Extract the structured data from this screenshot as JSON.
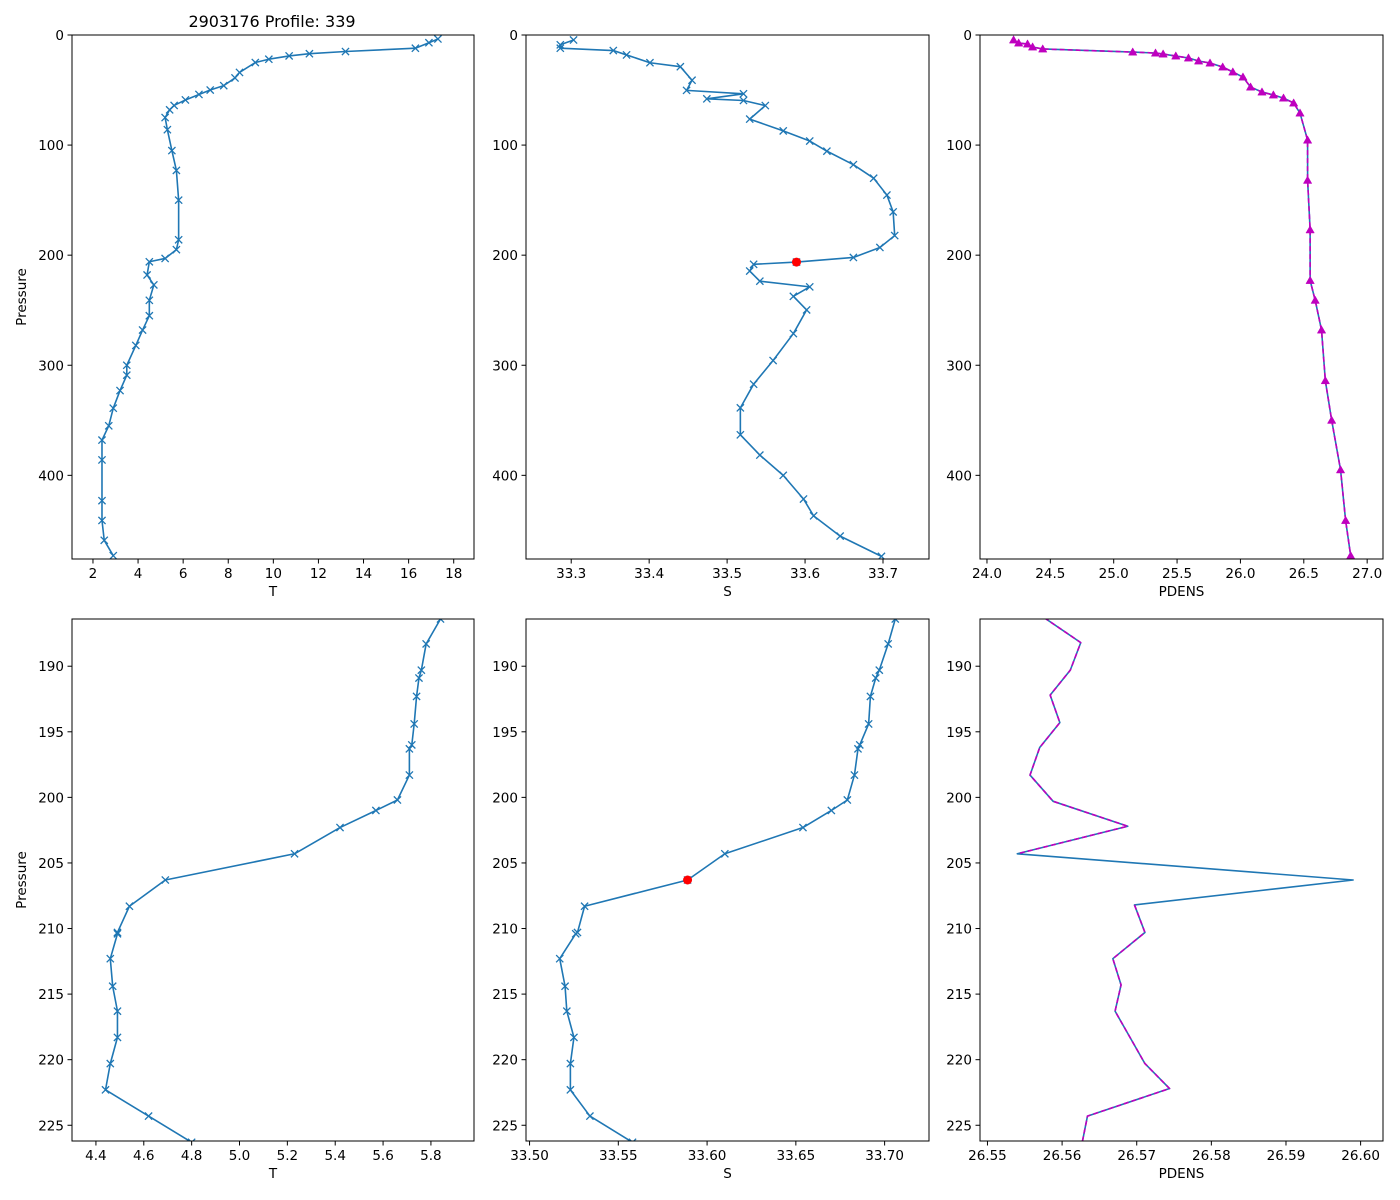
{
  "figure": {
    "title": "2903176 Profile: 339"
  },
  "colors": {
    "blue": "#1f77b4",
    "magenta": "#bf00bf",
    "red": "#ff0000"
  },
  "chart_data": [
    {
      "type": "line",
      "panel": "top-temperature",
      "xlabel": "T",
      "ylabel": "Pressure",
      "xlim": [
        1.07,
        18.9
      ],
      "ylim": [
        0,
        476
      ],
      "xticks": [
        2,
        4,
        6,
        8,
        10,
        12,
        14,
        16,
        18
      ],
      "xtick_labels": [
        "2",
        "4",
        "6",
        "8",
        "10",
        "12",
        "14",
        "16",
        "18"
      ],
      "yticks": [
        0,
        100,
        200,
        300,
        400
      ],
      "ytick_labels": [
        "0",
        "100",
        "200",
        "300",
        "400"
      ],
      "series": [
        {
          "name": "T",
          "color": "#1f77b4",
          "marker": "x",
          "linestyle": "solid",
          "pressure": [
            3.6,
            7,
            12,
            15,
            17,
            19,
            22,
            25,
            34,
            39,
            46,
            50,
            54,
            59,
            64,
            68,
            75,
            86,
            105,
            123,
            150,
            186,
            195,
            203,
            206,
            218,
            227,
            241,
            255,
            268,
            282,
            300,
            309,
            323,
            339,
            355,
            368,
            386,
            423,
            441,
            459,
            473
          ],
          "values": [
            17.3,
            16.9,
            16.3,
            13.2,
            11.6,
            10.7,
            9.8,
            9.2,
            8.5,
            8.3,
            7.8,
            7.2,
            6.7,
            6.1,
            5.6,
            5.4,
            5.2,
            5.3,
            5.5,
            5.7,
            5.8,
            5.8,
            5.7,
            5.2,
            4.5,
            4.4,
            4.7,
            4.5,
            4.5,
            4.2,
            3.9,
            3.5,
            3.5,
            3.2,
            2.9,
            2.7,
            2.4,
            2.4,
            2.4,
            2.4,
            2.5,
            2.9
          ]
        }
      ]
    },
    {
      "type": "line",
      "panel": "top-salinity",
      "xlabel": "S",
      "ylabel": "",
      "xlim": [
        33.242,
        33.759
      ],
      "ylim": [
        0,
        476
      ],
      "xticks": [
        33.3,
        33.4,
        33.5,
        33.6,
        33.7
      ],
      "xtick_labels": [
        "33.3",
        "33.4",
        "33.5",
        "33.6",
        "33.7"
      ],
      "yticks": [
        0,
        100,
        200,
        300,
        400
      ],
      "ytick_labels": [
        "0",
        "100",
        "200",
        "300",
        "400"
      ],
      "series": [
        {
          "name": "S",
          "color": "#1f77b4",
          "marker": "x",
          "linestyle": "solid",
          "pressure": [
            4.5,
            8.9,
            12.0,
            14.1,
            18.1,
            25.2,
            28.8,
            41.1,
            50.3,
            53.4,
            58.0,
            59.5,
            64.1,
            76.4,
            87.1,
            96.3,
            105.5,
            117.8,
            130.1,
            145.4,
            160.7,
            182.2,
            193,
            202.1,
            206.3,
            208.3,
            214.4,
            223.6,
            228.8,
            237.4,
            249.7,
            271.2,
            295.7,
            317.2,
            338.7,
            363.2,
            381.6,
            400,
            421.5,
            436.8,
            455.2,
            473.6
          ],
          "values": [
            33.303,
            33.286,
            33.286,
            33.354,
            33.371,
            33.401,
            33.44,
            33.455,
            33.448,
            33.521,
            33.474,
            33.521,
            33.549,
            33.529,
            33.572,
            33.606,
            33.628,
            33.662,
            33.688,
            33.705,
            33.713,
            33.715,
            33.696,
            33.662,
            33.589,
            33.534,
            33.529,
            33.542,
            33.606,
            33.585,
            33.602,
            33.585,
            33.559,
            33.534,
            33.517,
            33.517,
            33.542,
            33.572,
            33.598,
            33.611,
            33.645,
            33.698
          ]
        }
      ],
      "highlight": {
        "pressure": 206.3,
        "value": 33.589,
        "color": "#ff0000"
      }
    },
    {
      "type": "line",
      "panel": "top-density",
      "xlabel": "PDENS",
      "ylabel": "",
      "xlim": [
        23.945,
        27.125
      ],
      "ylim": [
        0,
        476
      ],
      "xticks": [
        24.0,
        24.5,
        25.0,
        25.5,
        26.0,
        26.5,
        27.0
      ],
      "xtick_labels": [
        "24.0",
        "24.5",
        "25.0",
        "25.5",
        "26.0",
        "26.5",
        "27.0"
      ],
      "yticks": [
        0,
        100,
        200,
        300,
        400
      ],
      "ytick_labels": [
        "0",
        "100",
        "200",
        "300",
        "400"
      ],
      "series": [
        {
          "name": "PDENS",
          "color": "#1f77b4",
          "marker": "none",
          "linestyle": "solid",
          "pressure": [
            4.5,
            7.3,
            8.2,
            10.9,
            12.7,
            15.5,
            16.4,
            17.3,
            19.1,
            20.9,
            23.6,
            25.5,
            29.1,
            33.6,
            38.2,
            47.3,
            51.8,
            54.5,
            57.3,
            61.8,
            70.9,
            95.5,
            132,
            177,
            223,
            241,
            268,
            314,
            350,
            395,
            441,
            473
          ],
          "values": [
            24.21,
            24.25,
            24.32,
            24.36,
            24.44,
            25.15,
            25.33,
            25.39,
            25.49,
            25.59,
            25.67,
            25.76,
            25.86,
            25.94,
            26.02,
            26.08,
            26.17,
            26.26,
            26.34,
            26.42,
            26.47,
            26.53,
            26.53,
            26.55,
            26.55,
            26.59,
            26.64,
            26.67,
            26.72,
            26.79,
            26.83,
            26.87
          ]
        },
        {
          "name": "PDENS (stable)",
          "color": "#bf00bf",
          "marker": "^",
          "linestyle": "dashed",
          "pressure": [
            4.5,
            7.3,
            8.2,
            10.9,
            12.7,
            15.5,
            16.4,
            17.3,
            19.1,
            20.9,
            23.6,
            25.5,
            29.1,
            33.6,
            38.2,
            47.3,
            51.8,
            54.5,
            57.3,
            61.8,
            70.9,
            95.5,
            132,
            177,
            223,
            241,
            268,
            314,
            350,
            395,
            441,
            473
          ],
          "values": [
            24.21,
            24.25,
            24.32,
            24.36,
            24.44,
            25.15,
            25.33,
            25.39,
            25.49,
            25.59,
            25.67,
            25.76,
            25.86,
            25.94,
            26.02,
            26.08,
            26.17,
            26.26,
            26.34,
            26.42,
            26.47,
            26.53,
            26.53,
            26.55,
            26.55,
            26.59,
            26.64,
            26.67,
            26.72,
            26.79,
            26.83,
            26.87
          ]
        }
      ]
    },
    {
      "type": "line",
      "panel": "zoom-temperature",
      "xlabel": "T",
      "ylabel": "Pressure",
      "xlim": [
        4.3,
        5.98
      ],
      "ylim": [
        186.4,
        226.2
      ],
      "xticks": [
        4.4,
        4.6,
        4.8,
        5.0,
        5.2,
        5.4,
        5.6,
        5.8
      ],
      "xtick_labels": [
        "4.4",
        "4.6",
        "4.8",
        "5.0",
        "5.2",
        "5.4",
        "5.6",
        "5.8"
      ],
      "yticks": [
        190,
        195,
        200,
        205,
        210,
        215,
        220,
        225
      ],
      "ytick_labels": [
        "190",
        "195",
        "200",
        "205",
        "210",
        "215",
        "220",
        "225"
      ],
      "series": [
        {
          "name": "T",
          "color": "#1f77b4",
          "marker": "x",
          "linestyle": "solid",
          "pressure": [
            186.4,
            188.3,
            190.3,
            190.9,
            192.3,
            194.4,
            196.0,
            196.3,
            198.3,
            200.2,
            201.0,
            202.3,
            204.3,
            206.3,
            208.3,
            210.3,
            210.4,
            212.3,
            214.4,
            216.3,
            218.3,
            220.3,
            222.3,
            224.3,
            226.3
          ],
          "values": [
            5.84,
            5.78,
            5.76,
            5.75,
            5.74,
            5.73,
            5.72,
            5.71,
            5.71,
            5.66,
            5.57,
            5.42,
            5.23,
            4.69,
            4.54,
            4.49,
            4.49,
            4.46,
            4.47,
            4.49,
            4.49,
            4.46,
            4.44,
            4.62,
            4.8
          ]
        }
      ]
    },
    {
      "type": "line",
      "panel": "zoom-salinity",
      "xlabel": "S",
      "ylabel": "",
      "xlim": [
        33.498,
        33.725
      ],
      "ylim": [
        186.4,
        226.2
      ],
      "xticks": [
        33.5,
        33.55,
        33.6,
        33.65,
        33.7
      ],
      "xtick_labels": [
        "33.50",
        "33.55",
        "33.60",
        "33.65",
        "33.70"
      ],
      "yticks": [
        190,
        195,
        200,
        205,
        210,
        215,
        220,
        225
      ],
      "ytick_labels": [
        "190",
        "195",
        "200",
        "205",
        "210",
        "215",
        "220",
        "225"
      ],
      "series": [
        {
          "name": "S",
          "color": "#1f77b4",
          "marker": "x",
          "linestyle": "solid",
          "pressure": [
            186.4,
            188.3,
            190.3,
            190.9,
            192.3,
            194.4,
            196.0,
            196.3,
            198.3,
            200.2,
            201.0,
            202.3,
            204.3,
            206.3,
            208.3,
            210.3,
            210.4,
            212.3,
            214.4,
            216.3,
            218.3,
            220.3,
            222.3,
            224.3,
            226.3
          ],
          "values": [
            33.706,
            33.702,
            33.697,
            33.695,
            33.692,
            33.691,
            33.686,
            33.685,
            33.683,
            33.679,
            33.67,
            33.654,
            33.61,
            33.589,
            33.531,
            33.527,
            33.526,
            33.517,
            33.52,
            33.521,
            33.525,
            33.523,
            33.523,
            33.534,
            33.558
          ]
        }
      ],
      "highlight": {
        "pressure": 206.3,
        "value": 33.589,
        "color": "#ff0000"
      }
    },
    {
      "type": "line",
      "panel": "zoom-density",
      "xlabel": "PDENS",
      "ylabel": "",
      "xlim": [
        26.549,
        26.603
      ],
      "ylim": [
        186.4,
        226.2
      ],
      "xticks": [
        26.55,
        26.56,
        26.57,
        26.58,
        26.59,
        26.6
      ],
      "xtick_labels": [
        "26.55",
        "26.56",
        "26.57",
        "26.58",
        "26.59",
        "26.60"
      ],
      "yticks": [
        190,
        195,
        200,
        205,
        210,
        215,
        220,
        225
      ],
      "ytick_labels": [
        "190",
        "195",
        "200",
        "205",
        "210",
        "215",
        "220",
        "225"
      ],
      "series": [
        {
          "name": "PDENS",
          "color": "#1f77b4",
          "marker": "none",
          "linestyle": "solid",
          "pressure": [
            186.3,
            188.2,
            190.3,
            192.2,
            194.3,
            196.2,
            198.3,
            200.3,
            202.2,
            204.3,
            206.3,
            208.2,
            210.3,
            212.3,
            214.3,
            216.3,
            218.3,
            220.3,
            222.2,
            224.3,
            226.3
          ],
          "values": [
            26.5576,
            26.5625,
            26.5611,
            26.5584,
            26.5597,
            26.557,
            26.5557,
            26.5588,
            26.5688,
            26.554,
            26.599,
            26.5697,
            26.5711,
            26.5668,
            26.5679,
            26.5671,
            26.5691,
            26.5711,
            26.5744,
            26.5634,
            26.5627
          ]
        },
        {
          "name": "PDENS (stable)",
          "color": "#bf00bf",
          "marker": "none",
          "linestyle": "dashed",
          "pressure": [
            186.3,
            188.2,
            190.3,
            192.2,
            194.3,
            196.2,
            198.3,
            200.3,
            202.2,
            204.3,
            206.3,
            208.2,
            210.3,
            212.3,
            214.3,
            216.3,
            218.3,
            220.3,
            222.2,
            224.3,
            226.3
          ],
          "values": [
            26.5576,
            26.5625,
            26.5611,
            26.5584,
            26.5597,
            26.557,
            26.5557,
            26.5588,
            26.5688,
            26.554,
            null,
            26.5697,
            26.5711,
            26.5668,
            26.5679,
            26.5671,
            26.5691,
            26.5711,
            26.5744,
            26.5634,
            26.5627
          ]
        }
      ]
    }
  ]
}
